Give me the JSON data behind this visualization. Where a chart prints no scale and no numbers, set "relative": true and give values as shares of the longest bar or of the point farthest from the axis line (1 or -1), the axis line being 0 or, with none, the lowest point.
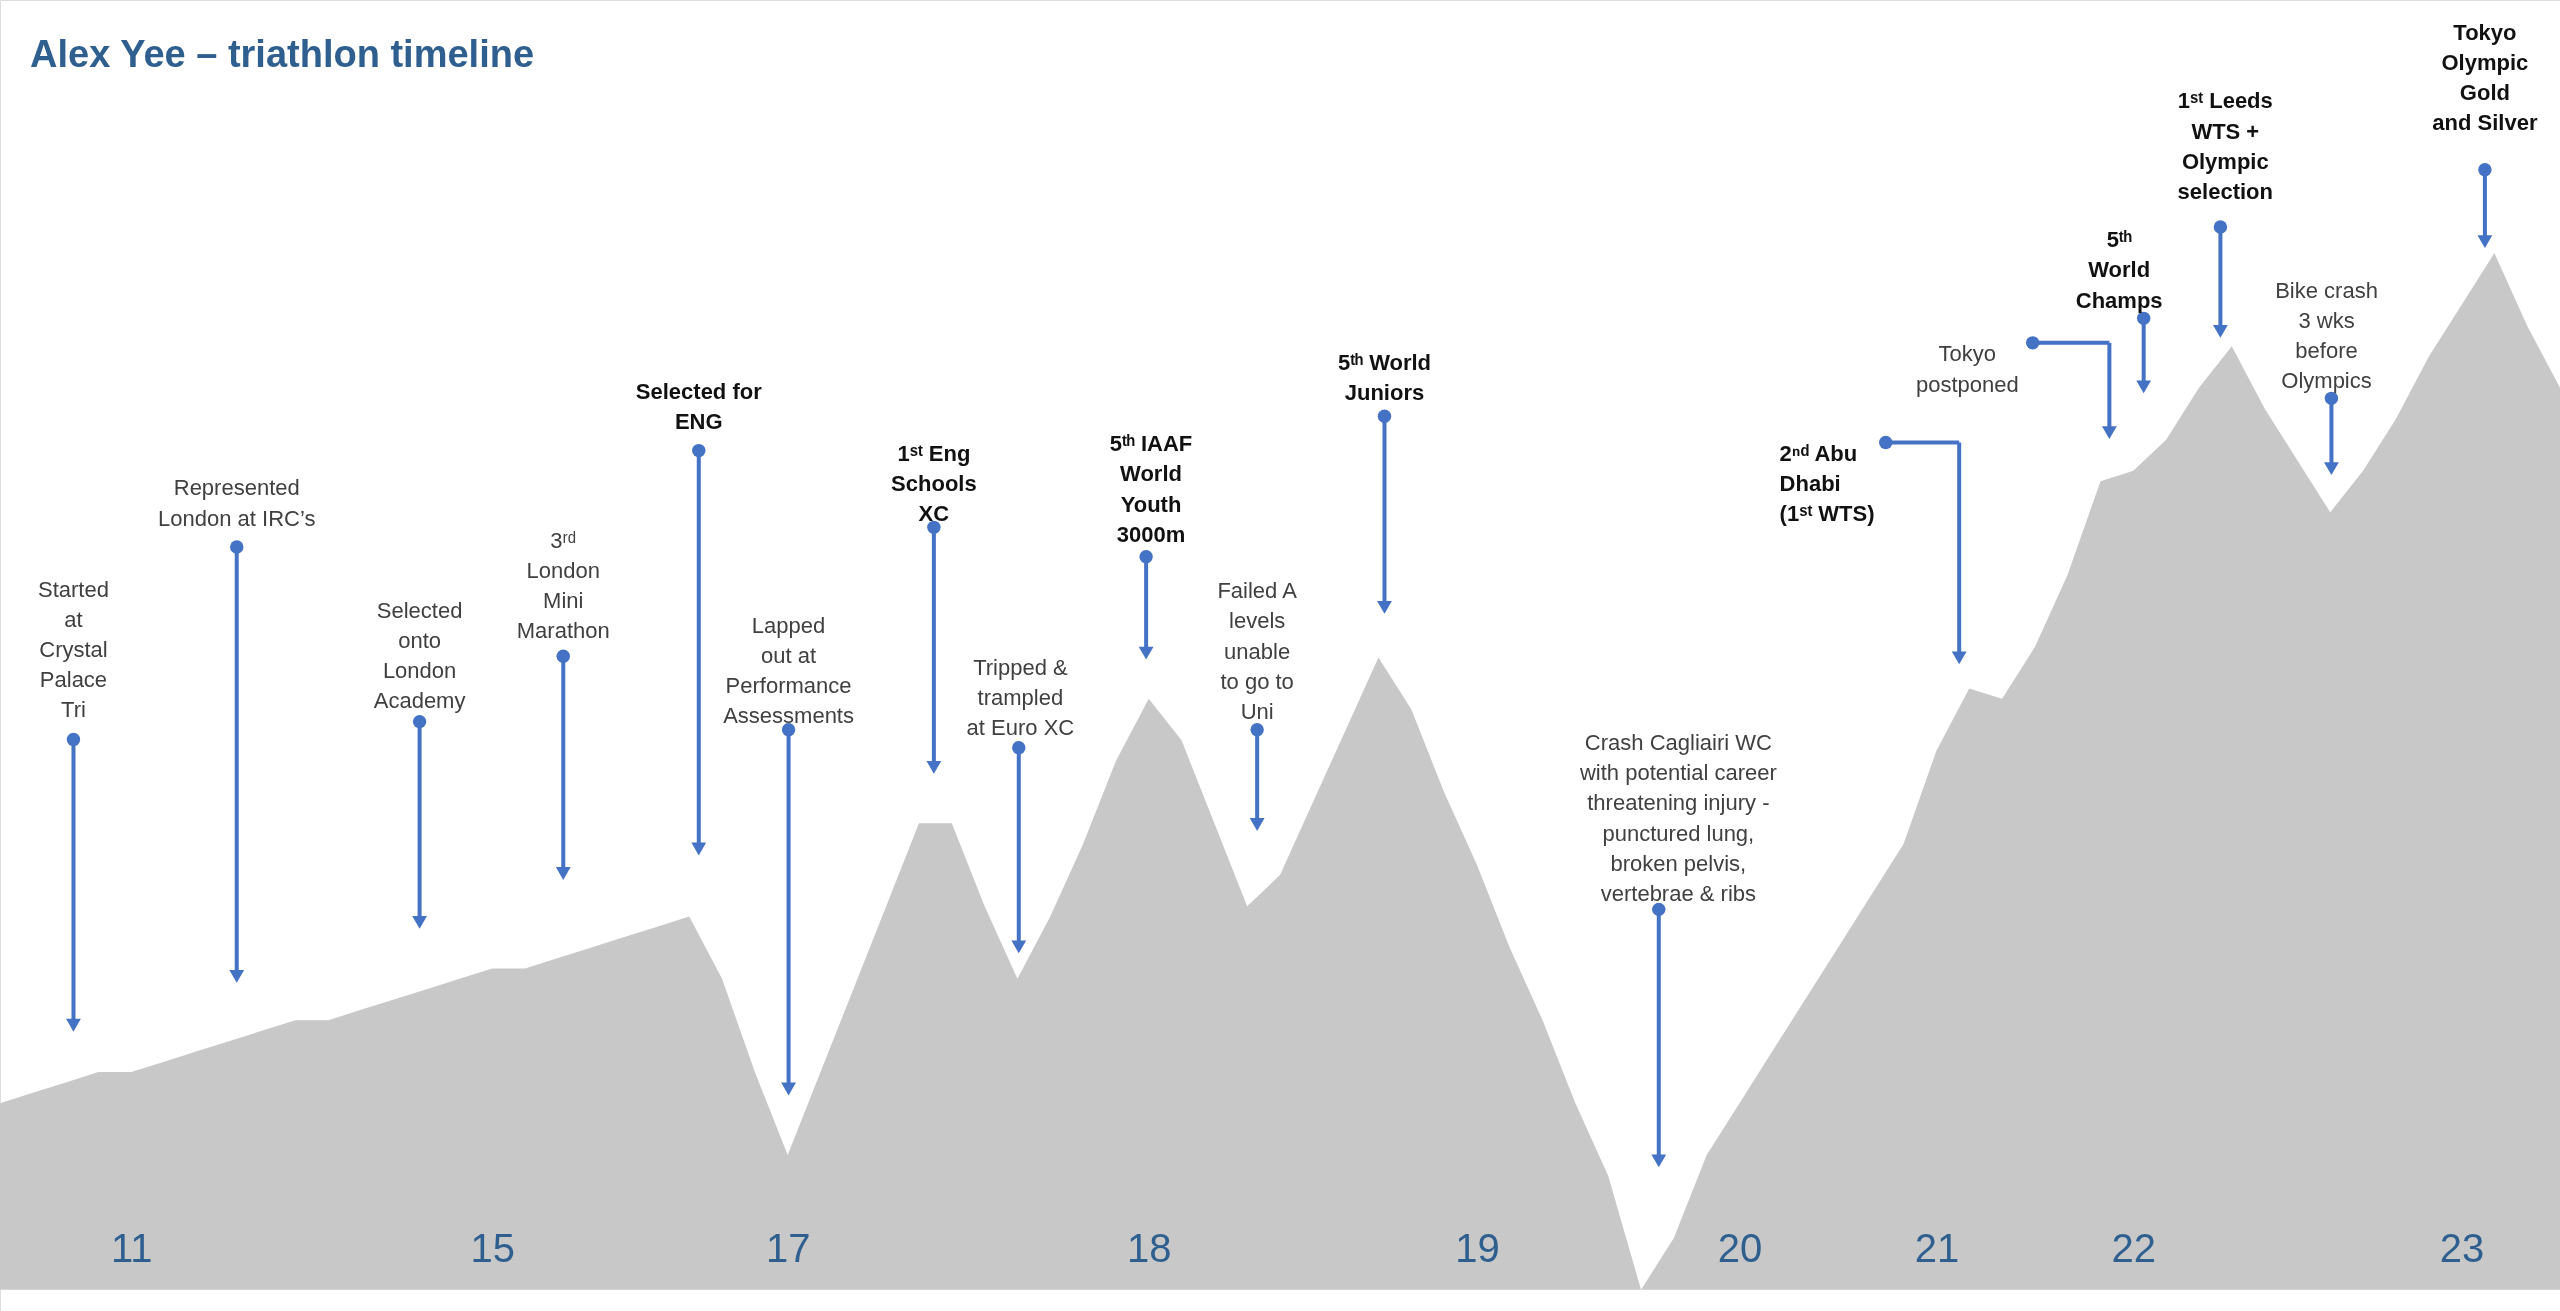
{
  "chart_data": {
    "type": "area",
    "title": "Alex Yee – triathlon timeline",
    "relative": true,
    "categories": [
      null,
      null,
      null,
      null,
      "11",
      null,
      null,
      null,
      null,
      null,
      null,
      null,
      null,
      null,
      null,
      "15",
      null,
      null,
      null,
      null,
      null,
      null,
      null,
      null,
      "17",
      null,
      null,
      null,
      null,
      null,
      null,
      null,
      null,
      null,
      null,
      "18",
      null,
      null,
      null,
      null,
      null,
      null,
      null,
      null,
      null,
      "19",
      null,
      null,
      null,
      null,
      null,
      null,
      null,
      "20",
      null,
      null,
      null,
      null,
      null,
      "21",
      null,
      null,
      null,
      null,
      null,
      "22",
      null,
      null,
      null,
      null,
      null,
      null,
      null,
      null,
      null,
      "23",
      null,
      null,
      null
    ],
    "series": [
      {
        "color": "#c8c8c8",
        "values": [
          0.18,
          0.19,
          0.2,
          0.21,
          0.21,
          0.22,
          0.23,
          0.24,
          0.25,
          0.26,
          0.26,
          0.27,
          0.28,
          0.29,
          0.3,
          0.31,
          0.31,
          0.32,
          0.33,
          0.34,
          0.35,
          0.36,
          0.3,
          0.21,
          0.13,
          0.21,
          0.29,
          0.37,
          0.45,
          0.45,
          0.37,
          0.3,
          0.36,
          0.43,
          0.51,
          0.57,
          0.53,
          0.45,
          0.37,
          0.4,
          0.47,
          0.54,
          0.61,
          0.56,
          0.48,
          0.41,
          0.33,
          0.26,
          0.18,
          0.11,
          0.0,
          0.05,
          0.13,
          0.18,
          0.23,
          0.28,
          0.33,
          0.38,
          0.43,
          0.52,
          0.58,
          0.57,
          0.62,
          0.69,
          0.78,
          0.79,
          0.82,
          0.87,
          0.91,
          0.85,
          0.8,
          0.75,
          0.79,
          0.84,
          0.9,
          0.95,
          1.0,
          0.93,
          0.87
        ]
      }
    ],
    "annotations": [
      "Started\nat\nCrystal\nPalace\nTri",
      "Represented\nLondon at IRC’s",
      "Selected\nonto\nLondon\nAcademy",
      "3ʳᵈ\nLondon\nMini\nMarathon",
      "Selected for\nENG",
      "Lapped\nout at\nPerformance\nAssessments",
      "1ˢᵗ Eng\nSchools\nXC",
      "Tripped &\ntrampled\nat Euro XC",
      "5ᵗʰ IAAF\nWorld\nYouth\n3000m",
      "Failed A\nlevels\nunable\nto go to\nUni",
      "5ᵗʰ World\nJuniors",
      "Crash Cagliairi WC\nwith potential career\nthreatening injury -\npunctured lung,\nbroken pelvis,\nvertebrae & ribs",
      "2ⁿᵈ Abu\nDhabi\n(1ˢᵗ WTS)",
      "Tokyo\npostponed",
      "5ᵗʰ\nWorld\nChamps",
      "1ˢᵗ Leeds\nWTS  +\nOlympic\nselection",
      "Bike crash\n3 wks\nbefore\nOlympics",
      "Tokyo\nOlympic\nGold\nand Silver"
    ],
    "grid": false
  }
}
